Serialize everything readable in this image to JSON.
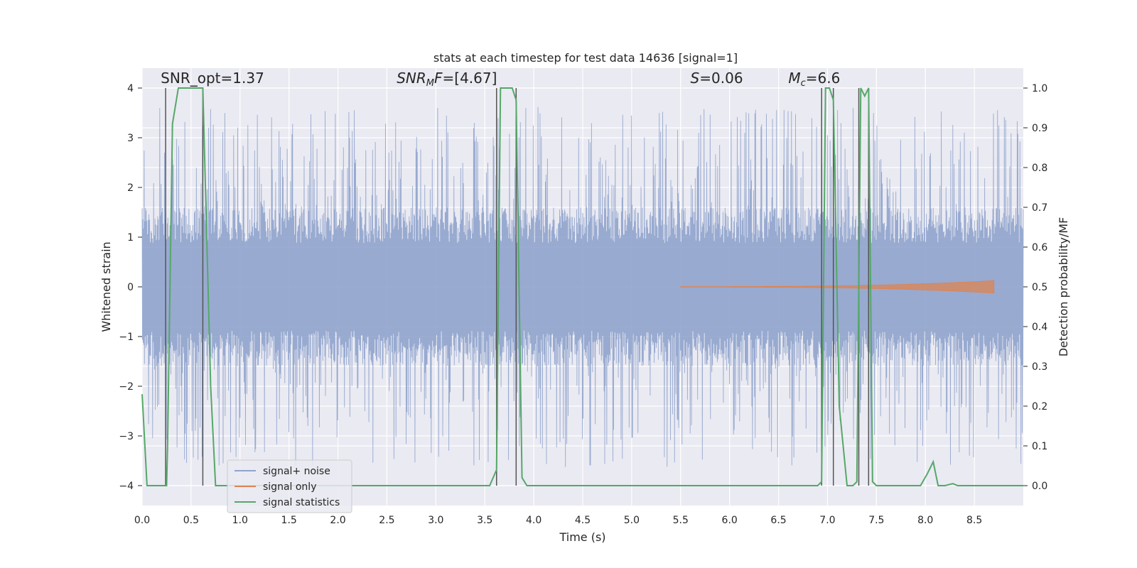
{
  "chart_data": {
    "type": "line",
    "title": "stats at each timestep for test data 14636 [signal=1]",
    "xlabel": "Time (s)",
    "ylabel_left": "Whitened strain",
    "ylabel_right": "Detection probability/MF",
    "xlim": [
      0.0,
      9.0
    ],
    "ylim_left": [
      -4.4,
      4.4
    ],
    "ylim_right": [
      -0.05,
      1.05
    ],
    "x_ticks": [
      0.0,
      0.5,
      1.0,
      1.5,
      2.0,
      2.5,
      3.0,
      3.5,
      4.0,
      4.5,
      5.0,
      5.5,
      6.0,
      6.5,
      7.0,
      7.5,
      8.0,
      8.5
    ],
    "x_tick_labels": [
      "0.0",
      "0.5",
      "1.0",
      "1.5",
      "2.0",
      "2.5",
      "3.0",
      "3.5",
      "4.0",
      "4.5",
      "5.0",
      "5.5",
      "6.0",
      "6.5",
      "7.0",
      "7.5",
      "8.0",
      "8.5"
    ],
    "y_left_ticks": [
      4,
      3,
      2,
      1,
      0,
      -1,
      -2,
      -3,
      -4
    ],
    "y_left_tick_labels": [
      "4",
      "3",
      "2",
      "1",
      "0",
      "−1",
      "−2",
      "−3",
      "−4"
    ],
    "y_right_ticks": [
      1.0,
      0.9,
      0.8,
      0.7,
      0.6,
      0.5,
      0.4,
      0.3,
      0.2,
      0.1,
      0.0
    ],
    "y_right_tick_labels": [
      "1.0",
      "0.9",
      "0.8",
      "0.7",
      "0.6",
      "0.5",
      "0.4",
      "0.3",
      "0.2",
      "0.1",
      "0.0"
    ],
    "grid": true,
    "legend_position": "bottom-left",
    "annotations": [
      {
        "id": "snr-opt",
        "text": "SNR_opt=1.37",
        "x": 0.19,
        "y": 4.1
      },
      {
        "id": "snr-mf",
        "text": "SNR_MF=[4.67]",
        "x": 2.6,
        "y": 4.1
      },
      {
        "id": "s-value",
        "text": "S=0.06",
        "x": 5.6,
        "y": 4.1
      },
      {
        "id": "mc-value",
        "text": "M_c=6.6",
        "x": 6.6,
        "y": 4.1
      }
    ],
    "series": [
      {
        "name": "signal+ noise",
        "color": "#8fa3cc",
        "kind": "noise",
        "x_range": [
          0.0,
          9.0
        ],
        "core_amplitude": 1.6,
        "peak_range": [
          1.5,
          4.0
        ]
      },
      {
        "name": "signal only",
        "color": "#dd8452",
        "kind": "chirp",
        "x_range": [
          5.5,
          8.7
        ],
        "max_amplitude": 0.12
      },
      {
        "name": "signal statistics",
        "color": "#55a868",
        "axis": "right",
        "x": [
          0.0,
          0.05,
          0.25,
          0.26,
          0.31,
          0.37,
          0.62,
          0.7,
          0.75,
          3.55,
          3.62,
          3.66,
          3.72,
          3.78,
          3.82,
          3.88,
          3.93,
          6.9,
          6.94,
          6.98,
          7.02,
          7.06,
          7.12,
          7.2,
          7.26,
          7.3,
          7.34,
          7.38,
          7.42,
          7.46,
          7.5,
          7.95,
          8.02,
          8.08,
          8.13,
          8.2,
          8.28,
          8.33,
          8.4,
          9.0
        ],
        "y": [
          0.23,
          0.0,
          0.0,
          0.1,
          0.91,
          1.0,
          1.0,
          0.25,
          0.0,
          0.0,
          0.04,
          1.0,
          1.0,
          1.0,
          0.97,
          0.02,
          0.0,
          0.0,
          0.01,
          1.0,
          1.0,
          0.97,
          0.2,
          0.0,
          0.0,
          0.01,
          1.0,
          0.98,
          1.0,
          0.01,
          0.0,
          0.0,
          0.03,
          0.06,
          0.0,
          0.0,
          0.005,
          0.0,
          0.0,
          0.0
        ]
      }
    ],
    "vertical_lines": [
      0.24,
      0.62,
      3.62,
      3.82,
      6.94,
      7.06,
      7.32,
      7.42
    ]
  }
}
